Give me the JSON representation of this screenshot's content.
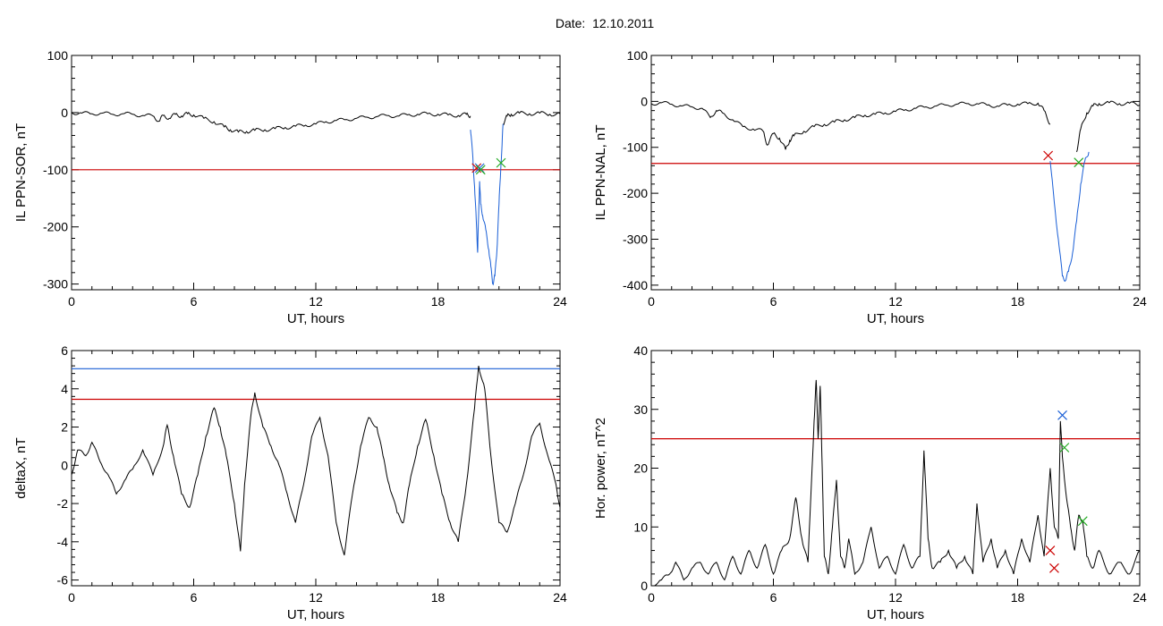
{
  "page": {
    "title_label": "Date:",
    "title_date": "12.10.2011"
  },
  "chart_data": [
    {
      "id": "il-sor",
      "type": "line",
      "ylabel": "IL PPN-SOR, nT",
      "xlabel": "UT, hours",
      "xlim": [
        0,
        24
      ],
      "ylim": [
        -310,
        100
      ],
      "xticks": [
        0,
        6,
        12,
        18,
        24
      ],
      "yticks": [
        -300,
        -200,
        -100,
        0,
        100
      ],
      "threshold": {
        "value": -100,
        "color": "#cc0000"
      },
      "series": [
        {
          "color": "#000000",
          "x": [
            0,
            0.5,
            1,
            1.5,
            2,
            2.5,
            3,
            3.5,
            4,
            4.3,
            4.5,
            4.8,
            5.1,
            5.4,
            5.7,
            6,
            6.5,
            7,
            7.5,
            7.8,
            8.2,
            8.6,
            9,
            9.5,
            10,
            10.5,
            11,
            11.5,
            12,
            12.5,
            13,
            13.5,
            14,
            14.5,
            15,
            15.5,
            16,
            16.5,
            17,
            17.5,
            18,
            18.5,
            19,
            19.4,
            19.6
          ],
          "y": [
            0,
            -1,
            -2,
            -1,
            -3,
            -2,
            -3,
            -5,
            -6,
            -15,
            -5,
            -10,
            -3,
            -6,
            -2,
            -4,
            -10,
            -16,
            -25,
            -30,
            -34,
            -33,
            -31,
            -30,
            -28,
            -26,
            -24,
            -22,
            -20,
            -16,
            -14,
            -12,
            -10,
            -8,
            -7,
            -5,
            -6,
            -4,
            -3,
            -2,
            -3,
            -4,
            -5,
            -3,
            -6
          ]
        },
        {
          "color": "#000000",
          "x": [
            21.2,
            21.4,
            21.6,
            22,
            22.5,
            23,
            23.5,
            24
          ],
          "y": [
            -20,
            -6,
            -3,
            -1,
            -2,
            -1,
            -3,
            -2
          ]
        },
        {
          "color": "#1a5fd6",
          "x": [
            19.6,
            19.7,
            19.8,
            19.9,
            19.95,
            20,
            20.05,
            20.1,
            20.2,
            20.35,
            20.5,
            20.6,
            20.7,
            20.8,
            20.9,
            21,
            21.1,
            21.2
          ],
          "y": [
            -30,
            -70,
            -130,
            -200,
            -245,
            -180,
            -120,
            -160,
            -180,
            -205,
            -240,
            -270,
            -300,
            -285,
            -240,
            -160,
            -90,
            -20
          ]
        }
      ],
      "markers": [
        {
          "x": 19.9,
          "y": -97,
          "color": "#cc0000"
        },
        {
          "x": 20.05,
          "y": -97,
          "color": "#1a5fd6"
        },
        {
          "x": 20.1,
          "y": -100,
          "color": "#22aa22"
        },
        {
          "x": 21.1,
          "y": -88,
          "color": "#22aa22"
        }
      ]
    },
    {
      "id": "il-nal",
      "type": "line",
      "ylabel": "IL PPN-NAL, nT",
      "xlabel": "UT, hours",
      "xlim": [
        0,
        24
      ],
      "ylim": [
        -410,
        100
      ],
      "xticks": [
        0,
        6,
        12,
        18,
        24
      ],
      "yticks": [
        -400,
        -300,
        -200,
        -100,
        0,
        100
      ],
      "threshold": {
        "value": -135,
        "color": "#cc0000"
      },
      "series": [
        {
          "color": "#000000",
          "x": [
            0,
            0.5,
            1,
            1.5,
            2,
            2.5,
            2.9,
            3.2,
            3.5,
            4,
            4.5,
            5,
            5.5,
            5.7,
            6,
            6.3,
            6.6,
            6.8,
            7,
            7.5,
            8,
            8.5,
            9,
            9.5,
            10,
            10.5,
            11,
            11.5,
            12,
            12.5,
            13,
            13.5,
            14,
            14.5,
            15,
            15.5,
            16,
            16.5,
            17,
            17.5,
            18,
            18.5,
            19,
            19.3,
            19.6
          ],
          "y": [
            -5,
            -3,
            -6,
            -10,
            -12,
            -15,
            -35,
            -20,
            -25,
            -40,
            -55,
            -60,
            -65,
            -95,
            -70,
            -80,
            -105,
            -85,
            -75,
            -65,
            -55,
            -50,
            -45,
            -40,
            -35,
            -30,
            -28,
            -25,
            -22,
            -18,
            -15,
            -12,
            -10,
            -8,
            -6,
            -5,
            -5,
            -8,
            -10,
            -8,
            -6,
            -5,
            -4,
            -20,
            -50
          ]
        },
        {
          "color": "#000000",
          "x": [
            20.9,
            21.1,
            21.4,
            21.7,
            22,
            22.5,
            23,
            23.5,
            24
          ],
          "y": [
            -110,
            -60,
            -25,
            -10,
            -5,
            -3,
            -5,
            -4,
            -8
          ]
        },
        {
          "color": "#1a5fd6",
          "x": [
            19.6,
            19.8,
            20,
            20.2,
            20.35,
            20.5,
            20.7,
            20.9,
            21.1,
            21.3,
            21.5
          ],
          "y": [
            -130,
            -220,
            -300,
            -380,
            -390,
            -370,
            -330,
            -260,
            -180,
            -130,
            -110
          ]
        }
      ],
      "markers": [
        {
          "x": 19.5,
          "y": -118,
          "color": "#cc0000"
        },
        {
          "x": 21.0,
          "y": -133,
          "color": "#22aa22"
        }
      ]
    },
    {
      "id": "deltax",
      "type": "line",
      "ylabel": "deltaX, nT",
      "xlabel": "UT, hours",
      "xlim": [
        0,
        24
      ],
      "ylim": [
        -6.3,
        6
      ],
      "xticks": [
        0,
        6,
        12,
        18,
        24
      ],
      "yticks": [
        -6,
        -4,
        -2,
        0,
        2,
        4,
        6
      ],
      "threshold": {
        "value": 3.45,
        "color": "#cc0000"
      },
      "threshold2": {
        "value": 5.05,
        "color": "#1a5fd6"
      },
      "series": [
        {
          "color": "#000000",
          "x": [
            0,
            0.3,
            0.7,
            1,
            1.4,
            1.8,
            2.2,
            2.6,
            3,
            3.5,
            4,
            4.5,
            4.7,
            5,
            5.4,
            5.8,
            6.2,
            6.6,
            7,
            7.3,
            7.6,
            8,
            8.3,
            8.5,
            8.8,
            9,
            9.4,
            9.8,
            10.2,
            10.6,
            11,
            11.4,
            11.8,
            12.2,
            12.6,
            13,
            13.4,
            13.8,
            14.2,
            14.6,
            15,
            15.3,
            15.6,
            16,
            16.3,
            16.6,
            17,
            17.4,
            17.8,
            18.2,
            18.6,
            19,
            19.4,
            19.8,
            20,
            20.3,
            20.6,
            21,
            21.4,
            21.8,
            22.2,
            22.6,
            23,
            23.4,
            23.8,
            24
          ],
          "y": [
            -0.5,
            0.8,
            0.5,
            1.2,
            0.2,
            -0.5,
            -1.5,
            -0.8,
            -0.2,
            0.8,
            -0.5,
            1.0,
            2.1,
            0.5,
            -1.5,
            -2.2,
            -0.5,
            1.5,
            3.0,
            2.0,
            0.5,
            -2.0,
            -4.5,
            -1.0,
            2.5,
            3.8,
            2.0,
            1.0,
            0.0,
            -1.5,
            -3.0,
            -1.0,
            1.5,
            2.5,
            0.5,
            -3.0,
            -4.7,
            -1.5,
            1.0,
            2.5,
            2.0,
            0.5,
            -1.0,
            -2.5,
            -3.0,
            -1.0,
            1.0,
            2.4,
            0.5,
            -1.5,
            -3.0,
            -4.0,
            -1.0,
            3.0,
            5.2,
            4.0,
            0.5,
            -3.0,
            -3.5,
            -2.0,
            -0.5,
            1.5,
            2.2,
            0.5,
            -1.0,
            -2.2
          ]
        }
      ],
      "markers": []
    },
    {
      "id": "hor-power",
      "type": "line",
      "ylabel": "Hor. power, nT^2",
      "xlabel": "UT, hours",
      "xlim": [
        0,
        24
      ],
      "ylim": [
        0,
        40
      ],
      "xticks": [
        0,
        6,
        12,
        18,
        24
      ],
      "yticks": [
        0,
        10,
        20,
        30,
        40
      ],
      "threshold": {
        "value": 25,
        "color": "#cc0000"
      },
      "series": [
        {
          "color": "#000000",
          "x": [
            0,
            0.5,
            0.9,
            1.2,
            1.6,
            2,
            2.4,
            2.8,
            3.2,
            3.6,
            4,
            4.4,
            4.8,
            5.2,
            5.6,
            6,
            6.4,
            6.8,
            7.1,
            7.4,
            7.7,
            8,
            8.1,
            8.2,
            8.3,
            8.4,
            8.5,
            8.7,
            8.9,
            9.1,
            9.3,
            9.5,
            9.7,
            10,
            10.4,
            10.8,
            11.2,
            11.6,
            12,
            12.4,
            12.8,
            13.2,
            13.4,
            13.6,
            13.8,
            14.2,
            14.6,
            15,
            15.4,
            15.8,
            16,
            16.3,
            16.7,
            17,
            17.4,
            17.8,
            18.2,
            18.6,
            19,
            19.3,
            19.6,
            19.8,
            20,
            20.1,
            20.2,
            20.4,
            20.6,
            20.8,
            21,
            21.2,
            21.4,
            21.7,
            22,
            22.5,
            23,
            23.5,
            24
          ],
          "y": [
            0,
            1,
            2,
            4,
            1,
            3,
            4,
            2,
            4,
            1,
            5,
            2,
            6,
            3,
            7,
            2,
            6,
            8,
            15,
            8,
            4,
            28,
            35,
            25,
            34,
            20,
            5,
            2,
            10,
            18,
            5,
            3,
            8,
            2,
            4,
            10,
            3,
            5,
            2,
            7,
            3,
            5,
            23,
            8,
            3,
            4,
            6,
            3,
            5,
            2,
            14,
            4,
            8,
            3,
            6,
            2,
            8,
            4,
            12,
            5,
            20,
            10,
            8,
            28,
            22,
            15,
            10,
            6,
            12,
            11,
            5,
            3,
            6,
            2,
            4,
            2,
            6
          ]
        }
      ],
      "markers": [
        {
          "x": 20.2,
          "y": 29,
          "color": "#1a5fd6"
        },
        {
          "x": 20.3,
          "y": 23.5,
          "color": "#22aa22"
        },
        {
          "x": 21.2,
          "y": 11,
          "color": "#22aa22"
        },
        {
          "x": 19.6,
          "y": 6,
          "color": "#cc0000"
        },
        {
          "x": 19.8,
          "y": 3,
          "color": "#cc0000"
        }
      ]
    }
  ]
}
